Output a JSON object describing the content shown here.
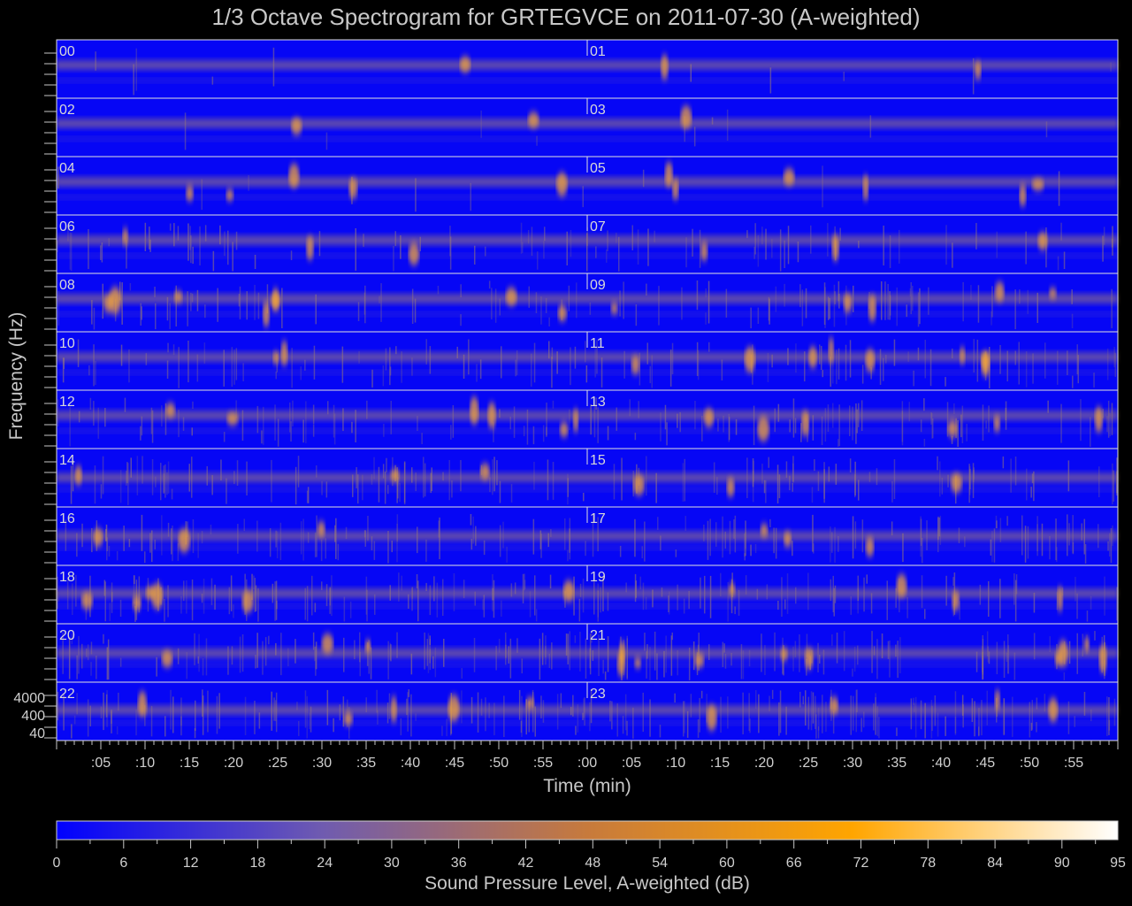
{
  "chart_data": {
    "type": "heatmap",
    "title": "1/3 Octave Spectrogram for GRTEGVCE on 2011-07-30 (A-weighted)",
    "xlabel": "Time (min)",
    "ylabel": "Frequency (Hz)",
    "colorbar_label": "Sound Pressure Level, A-weighted (dB)",
    "x_ticks": [
      ":05",
      ":10",
      ":15",
      ":20",
      ":25",
      ":30",
      ":35",
      ":40",
      ":45",
      ":50",
      ":55",
      ":00",
      ":05",
      ":10",
      ":15",
      ":20",
      ":25",
      ":30",
      ":35",
      ":40",
      ":45",
      ":50",
      ":55"
    ],
    "y_ticks": [
      "4000",
      "400",
      "40"
    ],
    "colorbar_ticks": [
      "0",
      "6",
      "12",
      "18",
      "24",
      "30",
      "36",
      "42",
      "48",
      "54",
      "60",
      "66",
      "72",
      "78",
      "84",
      "90",
      "95"
    ],
    "colorbar_range": [
      0,
      95
    ],
    "hour_labels": [
      "00",
      "01",
      "02",
      "03",
      "04",
      "05",
      "06",
      "07",
      "08",
      "09",
      "10",
      "11",
      "12",
      "13",
      "14",
      "15",
      "16",
      "17",
      "18",
      "19",
      "20",
      "21",
      "22",
      "23"
    ],
    "colormap": [
      "#0000ff",
      "#6f5bb0",
      "#c77a3c",
      "#ffa500",
      "#ffffff"
    ],
    "panel_colors": {
      "background": "#0606f5",
      "band": "#c79a5a",
      "event": "#f2a43a",
      "grid": "#e0e0e0"
    }
  }
}
